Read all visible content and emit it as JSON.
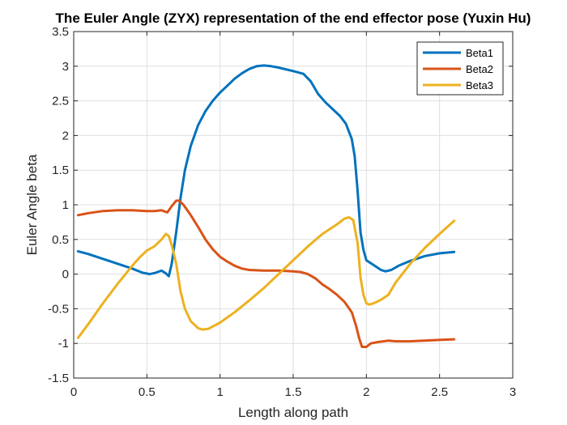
{
  "chart_data": {
    "type": "line",
    "title": "The Euler Angle (ZYX) representation of the end effector pose (Yuxin Hu)",
    "xlabel": "Length along path",
    "ylabel": "Euler Angle beta",
    "xlim": [
      0,
      3
    ],
    "ylim": [
      -1.5,
      3.5
    ],
    "xticks": [
      0,
      0.5,
      1,
      1.5,
      2,
      2.5,
      3
    ],
    "xtick_labels": [
      "0",
      "0.5",
      "1",
      "1.5",
      "2",
      "2.5",
      "3"
    ],
    "yticks": [
      -1.5,
      -1,
      -0.5,
      0,
      0.5,
      1,
      1.5,
      2,
      2.5,
      3,
      3.5
    ],
    "ytick_labels": [
      "-1.5",
      "-1",
      "-0.5",
      "0",
      "0.5",
      "1",
      "1.5",
      "2",
      "2.5",
      "3",
      "3.5"
    ],
    "grid": true,
    "legend_position": "top-right",
    "series": [
      {
        "name": "Beta1",
        "color": "#0072BD",
        "points": [
          [
            0.03,
            0.33
          ],
          [
            0.1,
            0.29
          ],
          [
            0.2,
            0.22
          ],
          [
            0.3,
            0.15
          ],
          [
            0.4,
            0.08
          ],
          [
            0.47,
            0.02
          ],
          [
            0.52,
            0.0
          ],
          [
            0.56,
            0.02
          ],
          [
            0.6,
            0.05
          ],
          [
            0.63,
            0.01
          ],
          [
            0.65,
            -0.03
          ],
          [
            0.67,
            0.15
          ],
          [
            0.7,
            0.6
          ],
          [
            0.73,
            1.1
          ],
          [
            0.76,
            1.5
          ],
          [
            0.8,
            1.85
          ],
          [
            0.85,
            2.15
          ],
          [
            0.9,
            2.35
          ],
          [
            0.95,
            2.5
          ],
          [
            1.0,
            2.62
          ],
          [
            1.05,
            2.72
          ],
          [
            1.1,
            2.82
          ],
          [
            1.15,
            2.9
          ],
          [
            1.2,
            2.96
          ],
          [
            1.25,
            3.0
          ],
          [
            1.3,
            3.01
          ],
          [
            1.35,
            3.0
          ],
          [
            1.4,
            2.98
          ],
          [
            1.5,
            2.93
          ],
          [
            1.57,
            2.89
          ],
          [
            1.62,
            2.78
          ],
          [
            1.67,
            2.6
          ],
          [
            1.72,
            2.48
          ],
          [
            1.77,
            2.38
          ],
          [
            1.82,
            2.28
          ],
          [
            1.86,
            2.17
          ],
          [
            1.9,
            1.95
          ],
          [
            1.92,
            1.7
          ],
          [
            1.94,
            1.2
          ],
          [
            1.96,
            0.6
          ],
          [
            1.98,
            0.35
          ],
          [
            2.0,
            0.2
          ],
          [
            2.05,
            0.13
          ],
          [
            2.1,
            0.06
          ],
          [
            2.13,
            0.04
          ],
          [
            2.17,
            0.06
          ],
          [
            2.22,
            0.12
          ],
          [
            2.3,
            0.19
          ],
          [
            2.4,
            0.26
          ],
          [
            2.5,
            0.3
          ],
          [
            2.6,
            0.32
          ]
        ]
      },
      {
        "name": "Beta2",
        "color": "#D95319",
        "points": [
          [
            0.03,
            0.85
          ],
          [
            0.1,
            0.88
          ],
          [
            0.2,
            0.91
          ],
          [
            0.3,
            0.92
          ],
          [
            0.4,
            0.92
          ],
          [
            0.5,
            0.91
          ],
          [
            0.55,
            0.91
          ],
          [
            0.6,
            0.92
          ],
          [
            0.64,
            0.89
          ],
          [
            0.67,
            0.98
          ],
          [
            0.7,
            1.06
          ],
          [
            0.72,
            1.06
          ],
          [
            0.75,
            1.0
          ],
          [
            0.8,
            0.85
          ],
          [
            0.85,
            0.68
          ],
          [
            0.9,
            0.5
          ],
          [
            0.95,
            0.36
          ],
          [
            1.0,
            0.25
          ],
          [
            1.05,
            0.18
          ],
          [
            1.1,
            0.12
          ],
          [
            1.15,
            0.08
          ],
          [
            1.2,
            0.06
          ],
          [
            1.3,
            0.05
          ],
          [
            1.4,
            0.05
          ],
          [
            1.5,
            0.04
          ],
          [
            1.55,
            0.03
          ],
          [
            1.6,
            0.0
          ],
          [
            1.65,
            -0.06
          ],
          [
            1.7,
            -0.15
          ],
          [
            1.75,
            -0.22
          ],
          [
            1.8,
            -0.3
          ],
          [
            1.85,
            -0.4
          ],
          [
            1.9,
            -0.55
          ],
          [
            1.93,
            -0.75
          ],
          [
            1.95,
            -0.92
          ],
          [
            1.97,
            -1.05
          ],
          [
            2.0,
            -1.05
          ],
          [
            2.03,
            -1.0
          ],
          [
            2.08,
            -0.98
          ],
          [
            2.15,
            -0.96
          ],
          [
            2.2,
            -0.97
          ],
          [
            2.3,
            -0.97
          ],
          [
            2.4,
            -0.96
          ],
          [
            2.5,
            -0.95
          ],
          [
            2.6,
            -0.94
          ]
        ]
      },
      {
        "name": "Beta3",
        "color": "#EDB120",
        "points": [
          [
            0.03,
            -0.92
          ],
          [
            0.1,
            -0.72
          ],
          [
            0.2,
            -0.42
          ],
          [
            0.3,
            -0.14
          ],
          [
            0.4,
            0.12
          ],
          [
            0.45,
            0.24
          ],
          [
            0.5,
            0.34
          ],
          [
            0.55,
            0.4
          ],
          [
            0.6,
            0.5
          ],
          [
            0.63,
            0.58
          ],
          [
            0.65,
            0.55
          ],
          [
            0.67,
            0.42
          ],
          [
            0.7,
            0.15
          ],
          [
            0.73,
            -0.25
          ],
          [
            0.76,
            -0.5
          ],
          [
            0.8,
            -0.68
          ],
          [
            0.85,
            -0.78
          ],
          [
            0.88,
            -0.8
          ],
          [
            0.92,
            -0.79
          ],
          [
            1.0,
            -0.7
          ],
          [
            1.1,
            -0.55
          ],
          [
            1.2,
            -0.38
          ],
          [
            1.3,
            -0.2
          ],
          [
            1.4,
            0.0
          ],
          [
            1.5,
            0.2
          ],
          [
            1.6,
            0.4
          ],
          [
            1.7,
            0.58
          ],
          [
            1.8,
            0.72
          ],
          [
            1.85,
            0.8
          ],
          [
            1.88,
            0.82
          ],
          [
            1.91,
            0.78
          ],
          [
            1.94,
            0.45
          ],
          [
            1.96,
            -0.05
          ],
          [
            1.98,
            -0.3
          ],
          [
            2.0,
            -0.42
          ],
          [
            2.02,
            -0.44
          ],
          [
            2.05,
            -0.42
          ],
          [
            2.1,
            -0.37
          ],
          [
            2.15,
            -0.3
          ],
          [
            2.2,
            -0.12
          ],
          [
            2.3,
            0.15
          ],
          [
            2.4,
            0.38
          ],
          [
            2.5,
            0.58
          ],
          [
            2.6,
            0.77
          ]
        ]
      }
    ]
  }
}
